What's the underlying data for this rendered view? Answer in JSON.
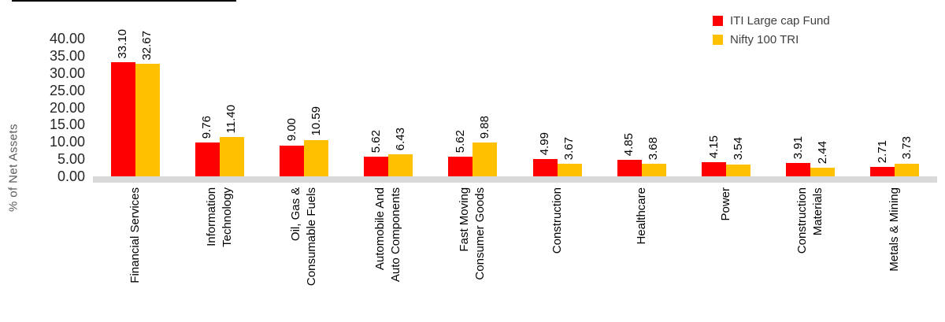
{
  "chart_data": {
    "type": "bar",
    "title": "",
    "ylabel": "% of Net Assets",
    "xlabel": "",
    "ylim": [
      0,
      40
    ],
    "y_ticks": [
      "40.00",
      "35.00",
      "30.00",
      "25.00",
      "20.00",
      "15.00",
      "10.00",
      "5.00",
      "0.00"
    ],
    "grid": false,
    "legend_position": "top-right",
    "categories": [
      "Financial Services",
      "Information Technology",
      "Oil, Gas & Consumable Fuels",
      "Automobile And Auto Components",
      "Fast Moving Consumer Goods",
      "Construction",
      "Healthcare",
      "Power",
      "Construction Materials",
      "Metals & Mining"
    ],
    "category_label_lines": [
      [
        "Financial Services"
      ],
      [
        "Information",
        "Technology"
      ],
      [
        "Oil, Gas &",
        "Consumable Fuels"
      ],
      [
        "Automobile And",
        "Auto Components"
      ],
      [
        "Fast Moving",
        "Consumer Goods"
      ],
      [
        "Construction"
      ],
      [
        "Healthcare"
      ],
      [
        "Power"
      ],
      [
        "Construction",
        "Materials"
      ],
      [
        "Metals & Mining"
      ]
    ],
    "series": [
      {
        "name": "ITI Large cap Fund",
        "color": "#FF0000",
        "values": [
          33.1,
          9.76,
          9.0,
          5.62,
          5.62,
          4.99,
          4.85,
          4.15,
          3.91,
          2.71
        ],
        "labels": [
          "33.10",
          "9.76",
          "9.00",
          "5.62",
          "5.62",
          "4.99",
          "4.85",
          "4.15",
          "3.91",
          "2.71"
        ]
      },
      {
        "name": "Nifty 100 TRI",
        "color": "#FFC000",
        "values": [
          32.67,
          11.4,
          10.59,
          6.43,
          9.88,
          3.67,
          3.68,
          3.54,
          2.44,
          3.73
        ],
        "labels": [
          "32.67",
          "11.40",
          "10.59",
          "6.43",
          "9.88",
          "3.67",
          "3.68",
          "3.54",
          "2.44",
          "3.73"
        ]
      }
    ],
    "colors": {
      "axis_band": "#d9d9d9",
      "tick_text": "#262626",
      "axis_title_text": "#595959"
    }
  }
}
